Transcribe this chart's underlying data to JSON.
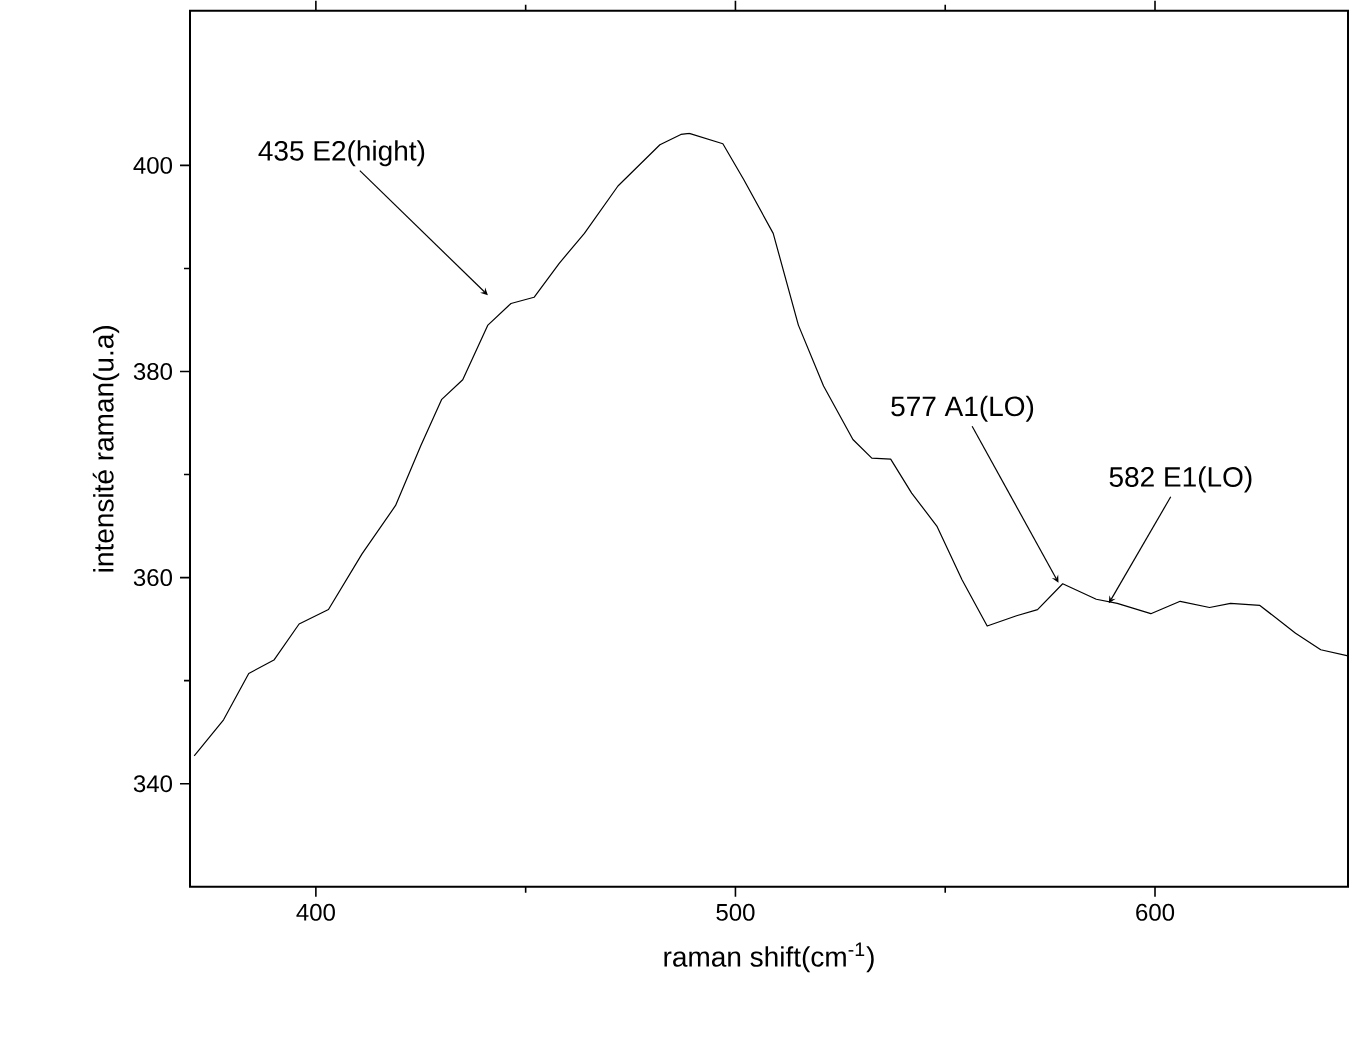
{
  "chart_data": {
    "type": "line",
    "xlabel": "raman shift(cm$^{-1}$)",
    "ylabel": "intensité raman(u.a)",
    "xlim": [
      370,
      646
    ],
    "ylim": [
      330,
      415
    ],
    "xticks": [
      400,
      500,
      600
    ],
    "yticks": [
      340,
      360,
      380,
      400
    ],
    "series": [
      {
        "color": "#000000",
        "x": [
          371,
          378,
          384,
          390,
          396,
          403,
          411,
          419,
          425,
          430,
          435,
          441,
          446.5,
          452,
          458,
          464,
          472,
          482,
          487,
          489,
          497,
          502,
          509,
          515,
          521,
          528,
          532.5,
          537,
          542,
          548,
          554,
          560,
          567,
          572,
          578,
          586,
          591,
          599,
          606,
          613,
          618,
          625,
          633.5,
          639.5,
          646
        ],
        "values": [
          342.7,
          346.2,
          350.7,
          352,
          355.5,
          356.9,
          362.3,
          367,
          372.8,
          377.3,
          379.2,
          384.5,
          386.6,
          387.2,
          390.5,
          393.4,
          398,
          402,
          403,
          403.1,
          402.1,
          398.6,
          393.4,
          384.5,
          378.6,
          373.4,
          371.6,
          371.5,
          368.2,
          365,
          359.8,
          355.3,
          356.3,
          356.9,
          359.4,
          357.9,
          357.5,
          356.5,
          357.7,
          357.1,
          357.5,
          357.3,
          354.6,
          353,
          352.4
        ]
      }
    ],
    "annotations": [
      {
        "text": "435 E2(hight)",
        "x": 441,
        "y": 387.4
      },
      {
        "text": "577 A1(LO)",
        "x": 577,
        "y": 359.5
      },
      {
        "text": "582 E1(LO)",
        "x": 589,
        "y": 357.5
      }
    ]
  }
}
